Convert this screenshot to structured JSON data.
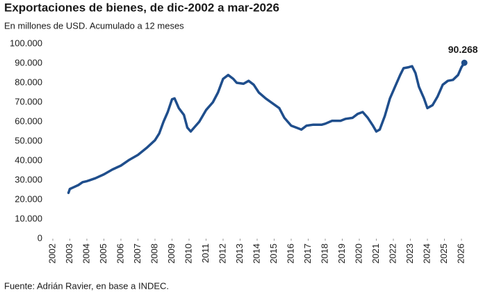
{
  "chart_data": {
    "type": "line",
    "title": "Exportaciones de bienes, de dic-2002 a mar-2026",
    "subtitle": "En millones de USD. Acumulado a 12 meses",
    "source": "Fuente: Adrián Ravier, en base a INDEC.",
    "x": [
      2002.92,
      2003.0,
      2003.25,
      2003.5,
      2003.75,
      2004.0,
      2004.5,
      2005.0,
      2005.5,
      2006.0,
      2006.5,
      2007.0,
      2007.5,
      2008.0,
      2008.25,
      2008.5,
      2008.75,
      2009.0,
      2009.15,
      2009.4,
      2009.7,
      2009.9,
      2010.1,
      2010.3,
      2010.6,
      2011.0,
      2011.4,
      2011.7,
      2012.0,
      2012.3,
      2012.6,
      2012.8,
      2013.2,
      2013.5,
      2013.8,
      2014.1,
      2014.5,
      2014.9,
      2015.3,
      2015.6,
      2016.0,
      2016.3,
      2016.6,
      2016.9,
      2017.3,
      2017.8,
      2018.0,
      2018.4,
      2018.9,
      2019.2,
      2019.6,
      2019.9,
      2020.2,
      2020.5,
      2020.8,
      2021.0,
      2021.2,
      2021.5,
      2021.8,
      2022.1,
      2022.4,
      2022.6,
      2022.9,
      2023.1,
      2023.3,
      2023.5,
      2023.8,
      2024.0,
      2024.3,
      2024.6,
      2024.9,
      2025.2,
      2025.5,
      2025.8,
      2026.0,
      2026.17
    ],
    "series": [
      {
        "name": "Exportaciones",
        "color": "#1f4e8c",
        "values": [
          23500,
          25500,
          26500,
          27500,
          29000,
          29500,
          31000,
          33000,
          35500,
          37500,
          40500,
          43000,
          46500,
          50500,
          54000,
          60000,
          65000,
          71500,
          72000,
          67000,
          63500,
          57000,
          55000,
          57000,
          60000,
          66000,
          70000,
          75000,
          82000,
          84000,
          82000,
          80000,
          79500,
          81000,
          79000,
          75000,
          72000,
          69500,
          67000,
          62000,
          58000,
          57000,
          56000,
          58000,
          58500,
          58500,
          59000,
          60500,
          60500,
          61500,
          62000,
          64000,
          65000,
          62000,
          58000,
          55000,
          56000,
          63000,
          72000,
          78000,
          84000,
          87500,
          88000,
          88500,
          85000,
          78000,
          72000,
          67000,
          68500,
          73000,
          79000,
          81000,
          81500,
          84000,
          88000,
          90268
        ]
      }
    ],
    "annotation": {
      "x": 2026.17,
      "y": 90268,
      "label": "90.268"
    },
    "xlim": [
      2002,
      2026
    ],
    "xticks": [
      2002,
      2003,
      2004,
      2005,
      2006,
      2007,
      2008,
      2009,
      2010,
      2011,
      2012,
      2013,
      2014,
      2015,
      2016,
      2017,
      2018,
      2019,
      2020,
      2021,
      2022,
      2023,
      2024,
      2025,
      2026
    ],
    "ylim": [
      0,
      100000
    ],
    "yticks": [
      0,
      {
        "value": 10000,
        "label": "10.000"
      },
      {
        "value": 20000,
        "label": "20.000"
      },
      {
        "value": 30000,
        "label": "30.000"
      },
      {
        "value": 40000,
        "label": "40.000"
      },
      {
        "value": 50000,
        "label": "50.000"
      },
      {
        "value": 60000,
        "label": "60.000"
      },
      {
        "value": 70000,
        "label": "70.000"
      },
      {
        "value": 80000,
        "label": "80.000"
      },
      {
        "value": 90000,
        "label": "90.000"
      },
      {
        "value": 100000,
        "label": "100.000"
      }
    ],
    "grid": false
  }
}
